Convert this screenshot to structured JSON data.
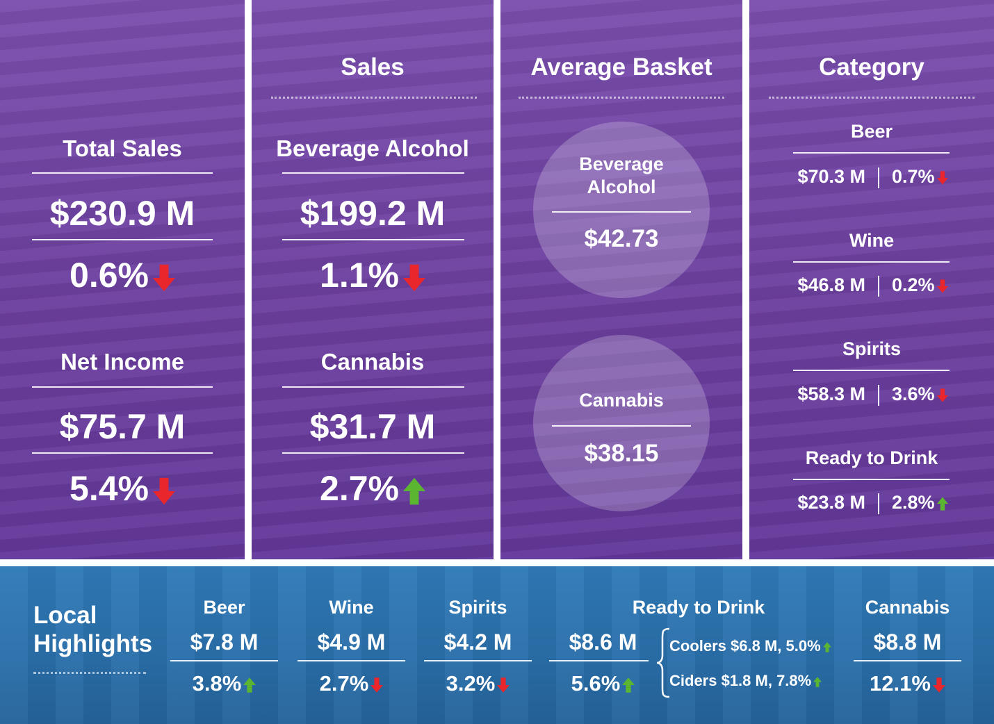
{
  "colors": {
    "panel_purple": "#6c3f9f",
    "bottom_blue": "#2a6ea9",
    "arrow_down": "#e8262b",
    "arrow_up": "#5cb531"
  },
  "total_sales": {
    "label": "Total Sales",
    "value": "$230.9 M",
    "change": "0.6%",
    "direction": "down"
  },
  "net_income": {
    "label": "Net Income",
    "value": "$75.7 M",
    "change": "5.4%",
    "direction": "down"
  },
  "sales": {
    "title": "Sales",
    "beverage_alcohol": {
      "label": "Beverage Alcohol",
      "value": "$199.2 M",
      "change": "1.1%",
      "direction": "down"
    },
    "cannabis": {
      "label": "Cannabis",
      "value": "$31.7 M",
      "change": "2.7%",
      "direction": "up"
    }
  },
  "average_basket": {
    "title": "Average Basket",
    "beverage_alcohol": {
      "label_line1": "Beverage",
      "label_line2": "Alcohol",
      "value": "$42.73"
    },
    "cannabis": {
      "label": "Cannabis",
      "value": "$38.15"
    }
  },
  "category": {
    "title": "Category",
    "items": [
      {
        "label": "Beer",
        "value": "$70.3 M",
        "change": "0.7%",
        "direction": "down"
      },
      {
        "label": "Wine",
        "value": "$46.8 M",
        "change": "0.2%",
        "direction": "down"
      },
      {
        "label": "Spirits",
        "value": "$58.3 M",
        "change": "3.6%",
        "direction": "down"
      },
      {
        "label": "Ready to Drink",
        "value": "$23.8 M",
        "change": "2.8%",
        "direction": "up"
      }
    ]
  },
  "local_highlights": {
    "title_line1": "Local",
    "title_line2": "Highlights",
    "beer": {
      "label": "Beer",
      "value": "$7.8 M",
      "change": "3.8%",
      "direction": "up"
    },
    "wine": {
      "label": "Wine",
      "value": "$4.9 M",
      "change": "2.7%",
      "direction": "down"
    },
    "spirits": {
      "label": "Spirits",
      "value": "$4.2 M",
      "change": "3.2%",
      "direction": "down"
    },
    "ready_to_drink": {
      "label": "Ready to Drink",
      "value": "$8.6 M",
      "change": "5.6%",
      "direction": "up",
      "coolers": "Coolers $6.8 M, 5.0%",
      "coolers_direction": "up",
      "ciders": "Ciders $1.8 M, 7.8%",
      "ciders_direction": "up"
    },
    "cannabis": {
      "label": "Cannabis",
      "value": "$8.8 M",
      "change": "12.1%",
      "direction": "down"
    }
  }
}
